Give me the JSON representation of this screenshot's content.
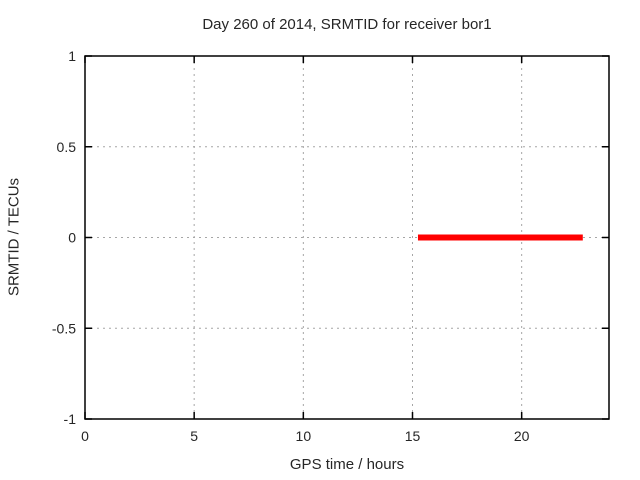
{
  "chart_data": {
    "type": "line",
    "title": "Day 260 of 2014, SRMTID for receiver bor1",
    "xlabel": "GPS time / hours",
    "ylabel": "SRMTID / TECUs",
    "xlim": [
      0,
      24
    ],
    "ylim": [
      -1,
      1
    ],
    "xticks": [
      0,
      5,
      10,
      15,
      20
    ],
    "xtick_labels": [
      "0",
      "5",
      "10",
      "15",
      "20"
    ],
    "yticks": [
      -1,
      -0.5,
      0,
      0.5,
      1
    ],
    "ytick_labels": [
      "-1",
      "-0.5",
      "0",
      "0.5",
      "1"
    ],
    "grid": true,
    "legend": "none",
    "colors": {
      "background": "#ffffff",
      "border": "#000000",
      "grid": "#a6a6a6",
      "text": "#262626",
      "series": "#ff0000"
    },
    "series": [
      {
        "name": "SRMTID",
        "color": "#ff0000",
        "linewidth": 6,
        "points": [
          {
            "x": 15.25,
            "y": 0
          },
          {
            "x": 22.8,
            "y": 0
          }
        ]
      }
    ]
  }
}
